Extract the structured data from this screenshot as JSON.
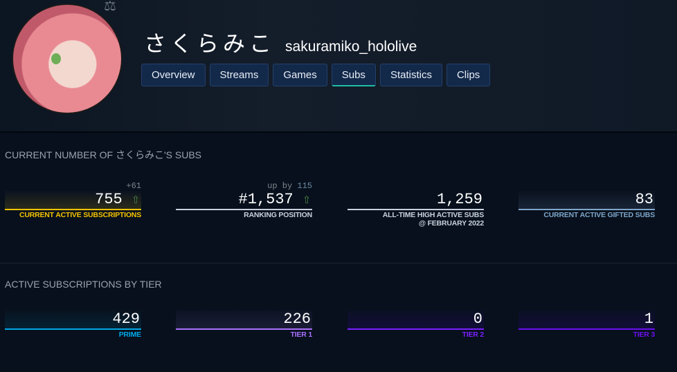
{
  "header": {
    "display_name": "さくらみこ",
    "login": "sakuramiko_hololive",
    "tabs": [
      {
        "label": "Overview"
      },
      {
        "label": "Streams"
      },
      {
        "label": "Games"
      },
      {
        "label": "Subs",
        "active": true
      },
      {
        "label": "Statistics"
      },
      {
        "label": "Clips"
      }
    ]
  },
  "sections": [
    {
      "title": "CURRENT NUMBER OF さくらみこ'S SUBS",
      "cards": [
        {
          "delta": "+61",
          "value": "755",
          "trend": "up",
          "label": "CURRENT ACTIVE SUBSCRIPTIONS",
          "color": "#f5c400"
        },
        {
          "delta_prefix": "up by ",
          "delta_num": "115",
          "value": "#1,537",
          "trend": "up",
          "label": "RANKING POSITION",
          "color": "#c8d2dc"
        },
        {
          "value": "1,259",
          "label": "ALL-TIME HIGH ACTIVE SUBS",
          "label2": "@ FEBRUARY 2022",
          "color": "#c8d2dc"
        },
        {
          "value": "83",
          "label": "CURRENT ACTIVE GIFTED SUBS",
          "color": "#7fa6c9"
        }
      ]
    },
    {
      "title": "ACTIVE SUBSCRIPTIONS BY TIER",
      "cards": [
        {
          "value": "429",
          "label": "PRIME",
          "color": "#00a8e8"
        },
        {
          "value": "226",
          "label": "TIER 1",
          "color": "#a970ff"
        },
        {
          "value": "0",
          "label": "TIER 2",
          "color": "#7a1fff"
        },
        {
          "value": "1",
          "label": "TIER 3",
          "color": "#6a10f0"
        }
      ]
    }
  ]
}
